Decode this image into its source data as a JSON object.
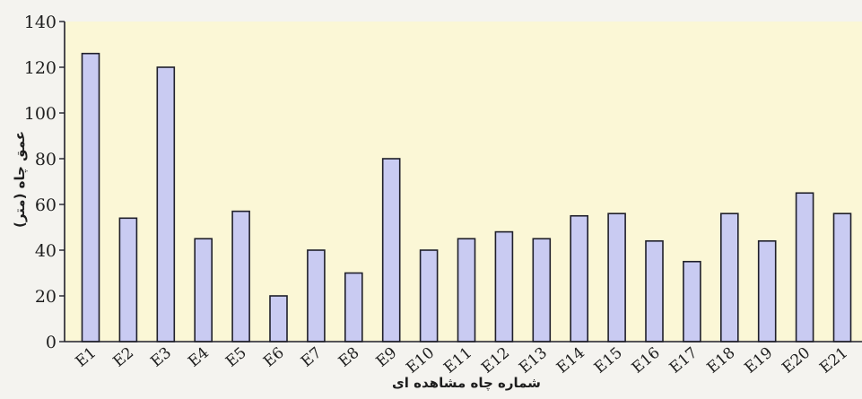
{
  "chart_data": {
    "type": "bar",
    "categories": [
      "E1",
      "E2",
      "E3",
      "E4",
      "E5",
      "E6",
      "E7",
      "E8",
      "E9",
      "E10",
      "E11",
      "E12",
      "E13",
      "E14",
      "E15",
      "E16",
      "E17",
      "E18",
      "E19",
      "E20",
      "E21"
    ],
    "values": [
      126,
      54,
      120,
      45,
      57,
      20,
      40,
      30,
      80,
      40,
      45,
      48,
      45,
      55,
      56,
      44,
      35,
      56,
      44,
      65,
      56
    ],
    "xlabel": "شماره چاه مشاهده ای",
    "ylabel": "عمق چاه (متر)",
    "ylim": [
      0,
      140
    ],
    "yticks": [
      0,
      20,
      40,
      60,
      80,
      100,
      120,
      140
    ],
    "grid": false,
    "colors": {
      "bar": "#c9cbf2",
      "plot_background": "#fbf7d6",
      "outline": "#1f1f2a"
    }
  }
}
